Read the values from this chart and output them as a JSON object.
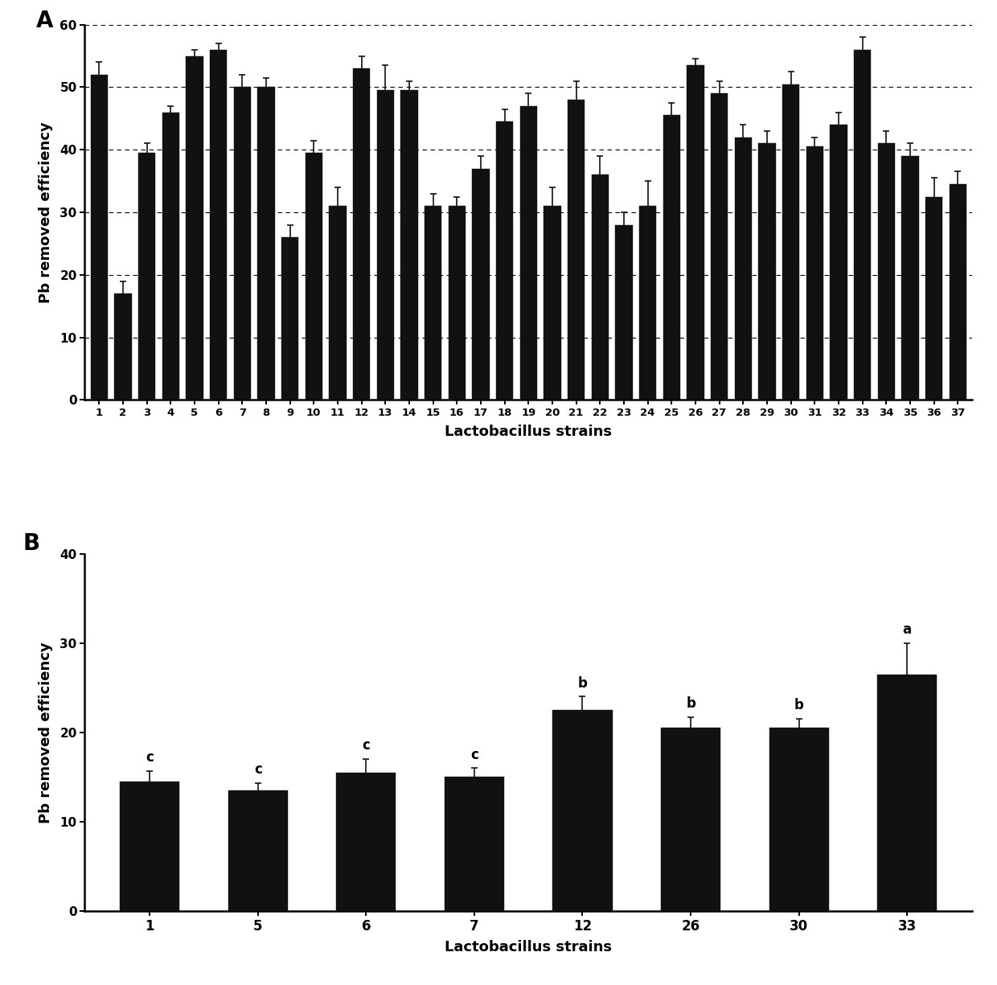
{
  "A": {
    "categories": [
      "1",
      "2",
      "3",
      "4",
      "5",
      "6",
      "7",
      "8",
      "9",
      "10",
      "11",
      "12",
      "13",
      "14",
      "15",
      "16",
      "17",
      "18",
      "19",
      "20",
      "21",
      "22",
      "23",
      "24",
      "25",
      "26",
      "27",
      "28",
      "29",
      "30",
      "31",
      "32",
      "33",
      "34",
      "35",
      "36",
      "37"
    ],
    "values": [
      52,
      17,
      39.5,
      46,
      55,
      56,
      50,
      50,
      26,
      39.5,
      31,
      53,
      49.5,
      49.5,
      31,
      31,
      37,
      44.5,
      47,
      31,
      48,
      36,
      28,
      31,
      45.5,
      53.5,
      49,
      42,
      41,
      50.5,
      40.5,
      44,
      56,
      41,
      39,
      32.5,
      34.5
    ],
    "errors": [
      2,
      2,
      1.5,
      1,
      1,
      1,
      2,
      1.5,
      2,
      2,
      3,
      2,
      4,
      1.5,
      2,
      1.5,
      2,
      2,
      2,
      3,
      3,
      3,
      2,
      4,
      2,
      1,
      2,
      2,
      2,
      2,
      1.5,
      2,
      2,
      2,
      2,
      3,
      2
    ],
    "ylabel": "Pb removed efficiency",
    "xlabel": "Lactobacillus strains",
    "ylim": [
      0,
      60
    ],
    "yticks": [
      0,
      10,
      20,
      30,
      40,
      50,
      60
    ],
    "grid_lines": [
      10,
      20,
      30,
      40,
      50,
      60
    ],
    "label": "A"
  },
  "B": {
    "categories": [
      "1",
      "5",
      "6",
      "7",
      "12",
      "26",
      "30",
      "33"
    ],
    "values": [
      14.5,
      13.5,
      15.5,
      15,
      22.5,
      20.5,
      20.5,
      26.5
    ],
    "errors": [
      1.2,
      0.8,
      1.5,
      1.0,
      1.5,
      1.2,
      1.0,
      3.5
    ],
    "letters": [
      "c",
      "c",
      "c",
      "c",
      "b",
      "b",
      "b",
      "a"
    ],
    "ylabel": "Pb removed efficiency",
    "xlabel": "Lactobacillus strains",
    "ylim": [
      0,
      40
    ],
    "yticks": [
      0,
      10,
      20,
      30,
      40
    ],
    "label": "B"
  },
  "bar_color": "#111111",
  "bar_edgecolor": "#111111",
  "background_color": "#ffffff",
  "errorbar_color": "#111111",
  "errorbar_capsize": 3,
  "errorbar_linewidth": 1.2
}
